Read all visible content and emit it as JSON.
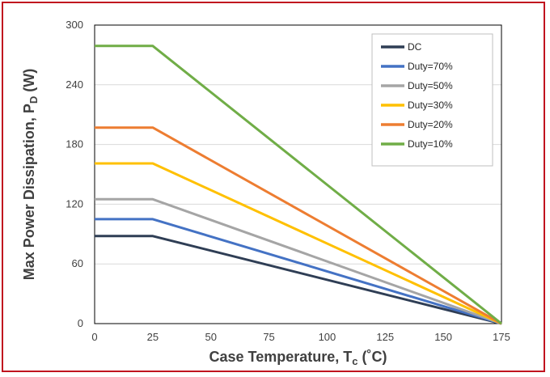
{
  "chart_data": {
    "type": "line",
    "xlabel": {
      "main": "Case Temperature, T",
      "sub": "c",
      "unit": " (˚C)"
    },
    "ylabel": {
      "main": "Max Power Dissipation, P",
      "sub": "D",
      "unit": " (W)"
    },
    "xlim": [
      0,
      175
    ],
    "ylim": [
      0,
      300
    ],
    "x_ticks": [
      "0",
      "25",
      "50",
      "75",
      "100",
      "125",
      "150",
      "175"
    ],
    "y_ticks": [
      "0",
      "60",
      "120",
      "180",
      "240",
      "300"
    ],
    "grid": "horizontal",
    "legend_position": "top-right",
    "series": [
      {
        "name": "DC",
        "color": "#2f3e55",
        "points": [
          [
            0,
            88
          ],
          [
            25,
            88
          ],
          [
            175,
            0
          ]
        ]
      },
      {
        "name": "Duty=70%",
        "color": "#4472c4",
        "points": [
          [
            0,
            105
          ],
          [
            25,
            105
          ],
          [
            175,
            0
          ]
        ]
      },
      {
        "name": "Duty=50%",
        "color": "#a5a5a5",
        "points": [
          [
            0,
            125
          ],
          [
            25,
            125
          ],
          [
            175,
            0
          ]
        ]
      },
      {
        "name": "Duty=30%",
        "color": "#ffc000",
        "points": [
          [
            0,
            161
          ],
          [
            25,
            161
          ],
          [
            175,
            0
          ]
        ]
      },
      {
        "name": "Duty=20%",
        "color": "#ed7d31",
        "points": [
          [
            0,
            197
          ],
          [
            25,
            197
          ],
          [
            175,
            0
          ]
        ]
      },
      {
        "name": "Duty=10%",
        "color": "#70ad47",
        "points": [
          [
            0,
            279
          ],
          [
            25,
            279
          ],
          [
            175,
            0
          ]
        ]
      }
    ]
  }
}
